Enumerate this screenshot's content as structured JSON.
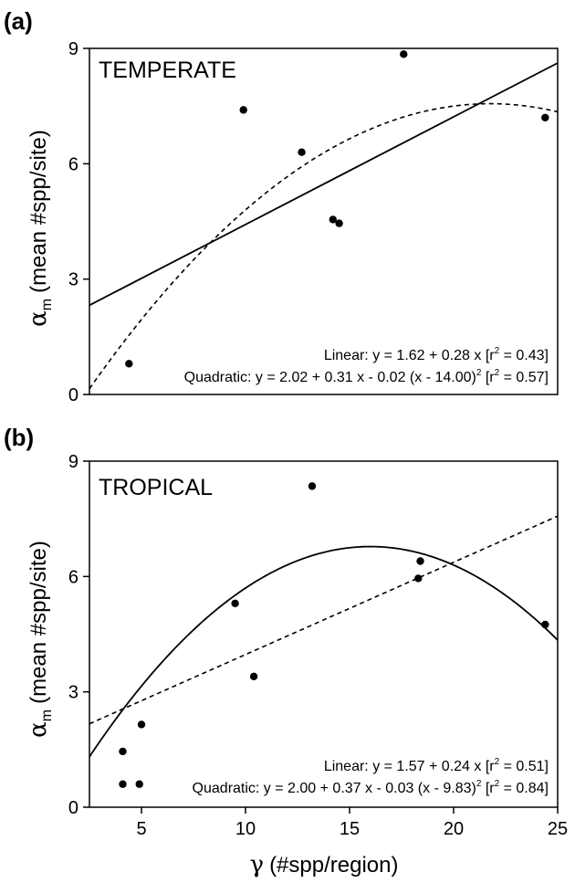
{
  "chart_data": [
    {
      "type": "scatter",
      "panel_label": "(a)",
      "title": "TEMPERATE",
      "ylabel": "αm (mean #spp/site)",
      "ylabel_symbol": "α",
      "ylabel_sub": "m",
      "ylabel_text": "(mean #spp/site)",
      "xlabel": "",
      "xlim": [
        2.5,
        25
      ],
      "ylim": [
        0,
        9
      ],
      "yticks": [
        0,
        3,
        6,
        9
      ],
      "xticks": [],
      "points": [
        {
          "x": 4.4,
          "y": 0.8
        },
        {
          "x": 9.9,
          "y": 7.4
        },
        {
          "x": 12.7,
          "y": 6.3
        },
        {
          "x": 14.2,
          "y": 4.55
        },
        {
          "x": 14.5,
          "y": 4.45
        },
        {
          "x": 17.6,
          "y": 8.85
        },
        {
          "x": 24.4,
          "y": 7.2
        }
      ],
      "fits": {
        "linear": {
          "style": "solid",
          "intercept": 1.62,
          "slope": 0.28
        },
        "quadratic": {
          "style": "dashed",
          "a": 2.02,
          "b": 0.31,
          "c": -0.02,
          "center": 14.0
        }
      },
      "annotations": {
        "linear": "Linear: y = 1.62 + 0.28 x [r",
        "linear_sup": "2",
        "linear_end": " = 0.43]",
        "quadratic": "Quadratic: y = 2.02 + 0.31 x - 0.02 (x - 14.00)",
        "quadratic_sup": "2",
        "quadratic_mid": " [r",
        "quadratic_sup2": "2",
        "quadratic_end": " = 0.57]"
      }
    },
    {
      "type": "scatter",
      "panel_label": "(b)",
      "title": "TROPICAL",
      "ylabel": "αm (mean #spp/site)",
      "ylabel_symbol": "α",
      "ylabel_sub": "m",
      "ylabel_text": "(mean #spp/site)",
      "xlabel": "γ (#spp/region)",
      "xlabel_symbol": "γ",
      "xlabel_text": "(#spp/region)",
      "xlim": [
        2.5,
        25
      ],
      "ylim": [
        0,
        9
      ],
      "yticks": [
        0,
        3,
        6,
        9
      ],
      "xticks": [
        5,
        10,
        15,
        20,
        25
      ],
      "points": [
        {
          "x": 4.1,
          "y": 0.6
        },
        {
          "x": 4.1,
          "y": 1.45
        },
        {
          "x": 4.9,
          "y": 0.6
        },
        {
          "x": 5.0,
          "y": 2.15
        },
        {
          "x": 9.5,
          "y": 5.3
        },
        {
          "x": 10.4,
          "y": 3.4
        },
        {
          "x": 13.2,
          "y": 8.35
        },
        {
          "x": 18.3,
          "y": 5.95
        },
        {
          "x": 18.4,
          "y": 6.4
        },
        {
          "x": 24.4,
          "y": 4.75
        }
      ],
      "fits": {
        "linear": {
          "style": "dashed",
          "intercept": 1.57,
          "slope": 0.24
        },
        "quadratic": {
          "style": "solid",
          "a": 2.0,
          "b": 0.37,
          "c": -0.03,
          "center": 9.83
        }
      },
      "annotations": {
        "linear": "Linear: y = 1.57 + 0.24 x [r",
        "linear_sup": "2",
        "linear_end": " = 0.51]",
        "quadratic": "Quadratic: y = 2.00 + 0.37 x - 0.03 (x - 9.83)",
        "quadratic_sup": "2",
        "quadratic_mid": " [r",
        "quadratic_sup2": "2",
        "quadratic_end": " = 0.84]"
      }
    }
  ]
}
